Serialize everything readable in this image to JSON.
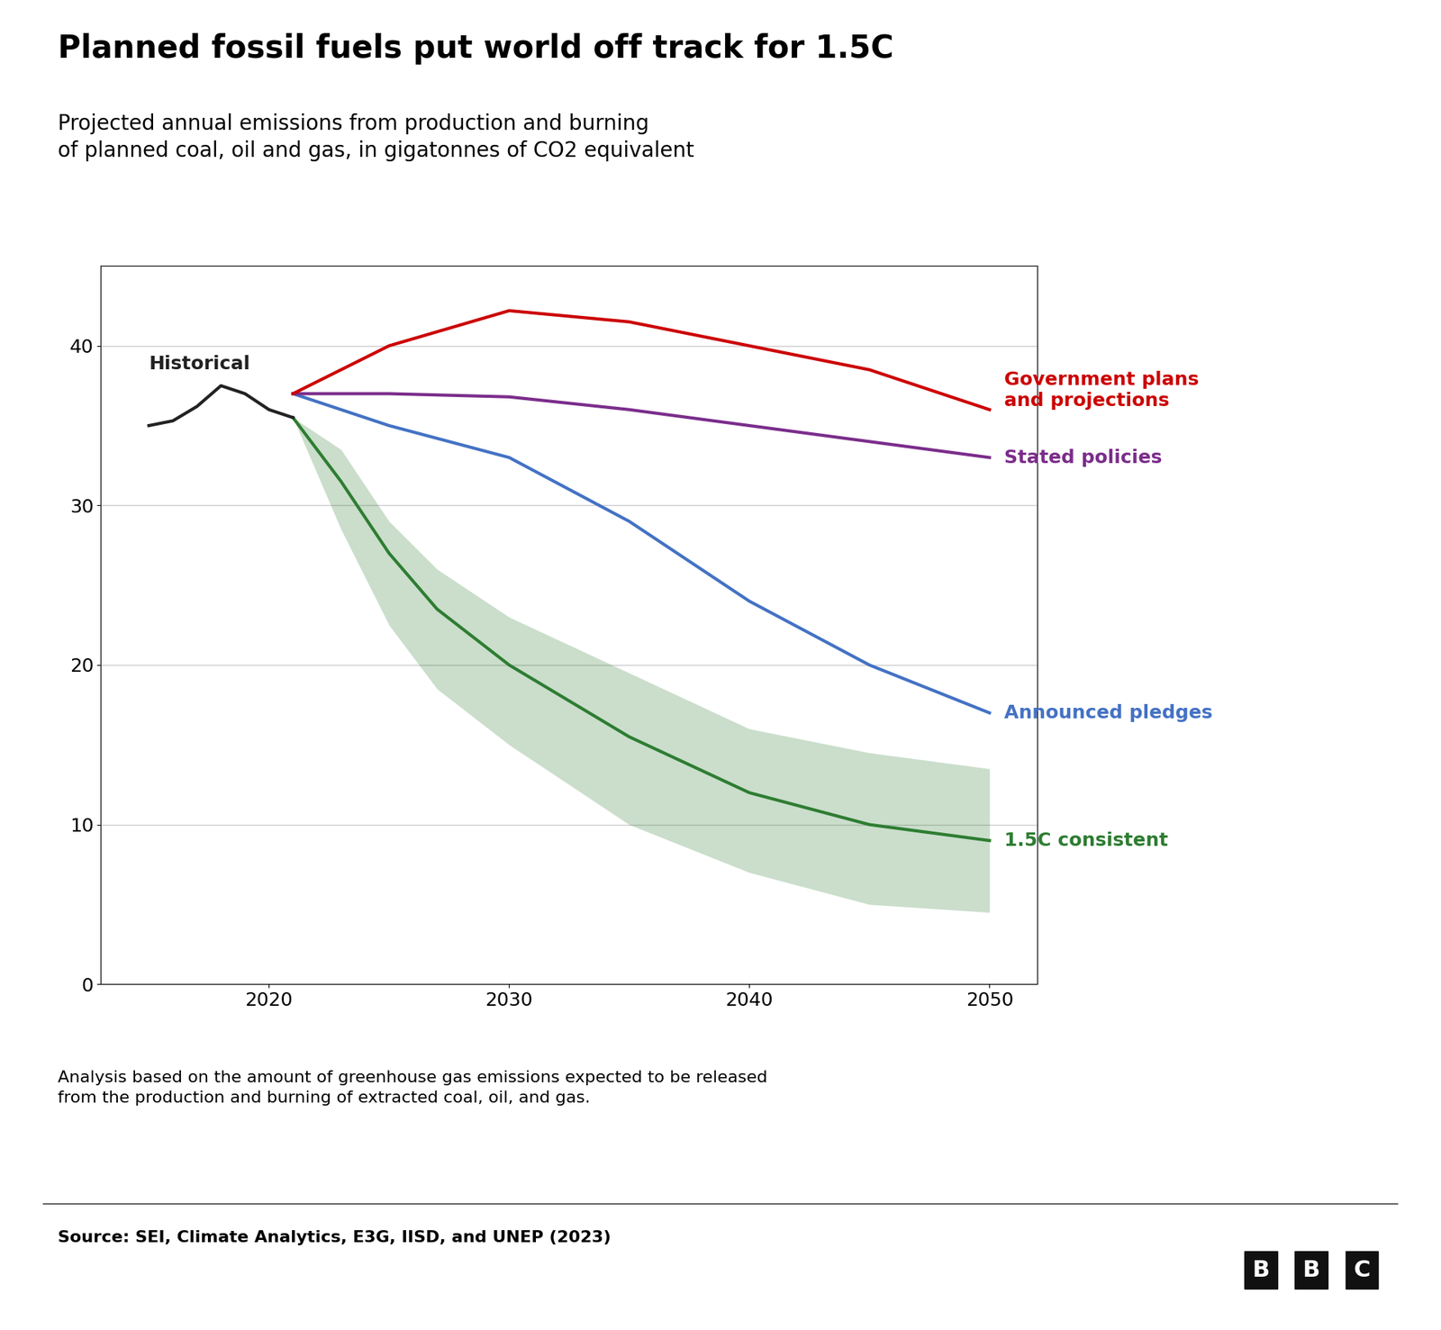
{
  "chart_data": {
    "type": "line",
    "title": "Planned fossil fuels put world off track for 1.5C",
    "subtitle": "Projected annual emissions from production and burning\nof planned coal, oil and gas, in gigatonnes of CO2 equivalent",
    "footnote": "Analysis based on the amount of greenhouse gas emissions expected to be released\nfrom the production and burning of extracted coal, oil, and gas.",
    "source": "Source: SEI, Climate Analytics, E3G, IISD, and UNEP (2023)",
    "logo": "BBC",
    "xlim": [
      2013,
      2052
    ],
    "ylim": [
      0,
      45
    ],
    "xticks": [
      2020,
      2030,
      2040,
      2050
    ],
    "yticks": [
      0,
      10,
      20,
      30,
      40
    ],
    "grid": "y",
    "series": [
      {
        "name": "Historical",
        "color": "#222222",
        "x": [
          2015,
          2016,
          2017,
          2018,
          2019,
          2020,
          2021
        ],
        "values": [
          35.0,
          35.3,
          36.2,
          37.5,
          37.0,
          36.0,
          35.5
        ]
      },
      {
        "name": "Government plans\nand projections",
        "color": "#cc0000",
        "x": [
          2021,
          2025,
          2030,
          2035,
          2040,
          2045,
          2050
        ],
        "values": [
          37.0,
          40.0,
          42.2,
          41.5,
          40.0,
          38.5,
          36.0
        ]
      },
      {
        "name": "Stated policies",
        "color": "#7b2d8b",
        "x": [
          2021,
          2025,
          2030,
          2035,
          2040,
          2045,
          2050
        ],
        "values": [
          37.0,
          37.0,
          36.8,
          36.0,
          35.0,
          34.0,
          33.0
        ]
      },
      {
        "name": "Announced pledges",
        "color": "#4472c4",
        "x": [
          2021,
          2025,
          2030,
          2035,
          2040,
          2045,
          2050
        ],
        "values": [
          37.0,
          35.0,
          33.0,
          29.0,
          24.0,
          20.0,
          17.0
        ]
      },
      {
        "name": "1.5C consistent",
        "color": "#2e7d32",
        "x": [
          2021,
          2023,
          2025,
          2027,
          2030,
          2035,
          2040,
          2045,
          2050
        ],
        "values": [
          35.5,
          31.5,
          27.0,
          23.5,
          20.0,
          15.5,
          12.0,
          10.0,
          9.0
        ],
        "upper": [
          35.5,
          33.5,
          29.0,
          26.0,
          23.0,
          19.5,
          16.0,
          14.5,
          13.5
        ],
        "lower": [
          35.5,
          28.5,
          22.5,
          18.5,
          15.0,
          10.0,
          7.0,
          5.0,
          4.5
        ]
      }
    ]
  }
}
